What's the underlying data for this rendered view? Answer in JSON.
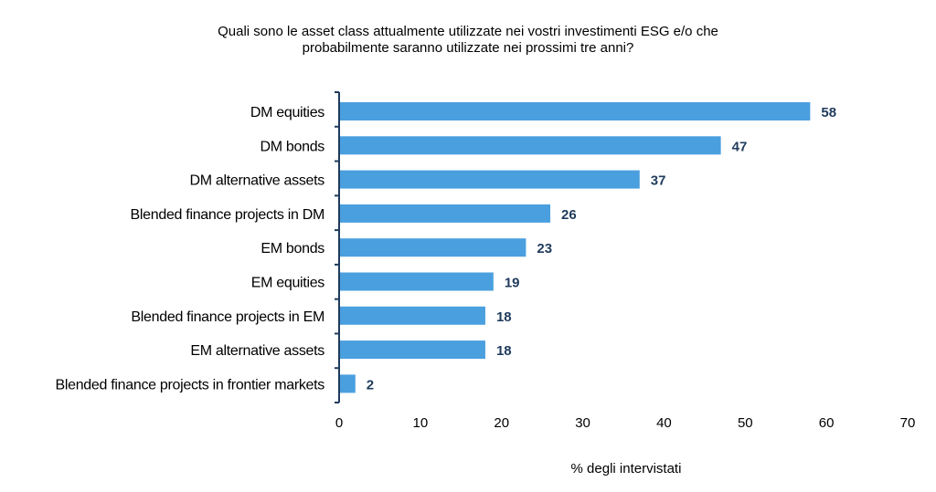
{
  "chart_data": {
    "type": "bar",
    "orientation": "horizontal",
    "title": "Quali sono le asset class attualmente utilizzate nei vostri investimenti ESG e/o che probabilmente saranno utilizzate nei prossimi tre anni?",
    "title_lines": [
      "Quali sono le asset class attualmente utilizzate nei vostri investimenti ESG e/o che",
      "probabilmente saranno utilizzate nei prossimi tre anni?"
    ],
    "categories": [
      "DM equities",
      "DM bonds",
      "DM alternative assets",
      "Blended finance projects in DM",
      "EM bonds",
      "EM equities",
      "Blended finance projects in EM",
      "EM alternative assets",
      "Blended finance projects in frontier markets"
    ],
    "values": [
      58,
      47,
      37,
      26,
      23,
      19,
      18,
      18,
      2
    ],
    "xlabel": "% degli intervistati",
    "ylabel": "",
    "xlim": [
      0,
      70
    ],
    "xticks": [
      0,
      10,
      20,
      30,
      40,
      50,
      60,
      70
    ],
    "grid": false,
    "data_labels": true,
    "colors": {
      "bar": "#4a9fdf",
      "data_label": "#1f3b5c",
      "axis": "#1f3b5c",
      "text": "#000000"
    }
  }
}
